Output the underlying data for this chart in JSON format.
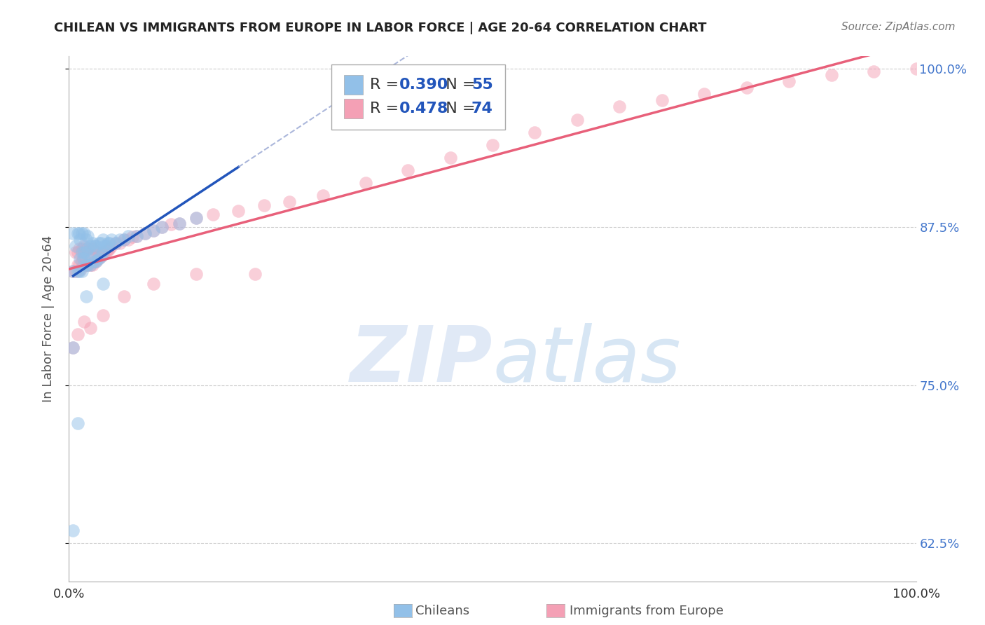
{
  "title": "CHILEAN VS IMMIGRANTS FROM EUROPE IN LABOR FORCE | AGE 20-64 CORRELATION CHART",
  "source": "Source: ZipAtlas.com",
  "ylabel": "In Labor Force | Age 20-64",
  "xlim": [
    0.0,
    1.0
  ],
  "ylim": [
    0.595,
    1.01
  ],
  "yticks": [
    0.625,
    0.75,
    0.875,
    1.0
  ],
  "ytick_labels": [
    "62.5%",
    "75.0%",
    "87.5%",
    "100.0%"
  ],
  "blue_color": "#92C0E8",
  "pink_color": "#F4A0B5",
  "blue_line_color": "#2255BB",
  "pink_line_color": "#E8607A",
  "R_blue": 0.39,
  "N_blue": 55,
  "R_pink": 0.478,
  "N_pink": 74,
  "blue_scatter_x": [
    0.005,
    0.005,
    0.008,
    0.01,
    0.01,
    0.012,
    0.012,
    0.013,
    0.013,
    0.015,
    0.015,
    0.015,
    0.017,
    0.018,
    0.018,
    0.02,
    0.02,
    0.02,
    0.022,
    0.022,
    0.022,
    0.025,
    0.025,
    0.027,
    0.028,
    0.03,
    0.03,
    0.032,
    0.032,
    0.035,
    0.035,
    0.038,
    0.038,
    0.04,
    0.04,
    0.042,
    0.044,
    0.046,
    0.048,
    0.05,
    0.055,
    0.06,
    0.065,
    0.07,
    0.08,
    0.09,
    0.1,
    0.11,
    0.13,
    0.15,
    0.005,
    0.02,
    0.04,
    0.005,
    0.01
  ],
  "blue_scatter_y": [
    0.84,
    0.87,
    0.86,
    0.84,
    0.87,
    0.84,
    0.87,
    0.85,
    0.865,
    0.84,
    0.855,
    0.87,
    0.85,
    0.855,
    0.87,
    0.845,
    0.855,
    0.865,
    0.845,
    0.858,
    0.868,
    0.845,
    0.86,
    0.85,
    0.862,
    0.848,
    0.86,
    0.848,
    0.86,
    0.85,
    0.862,
    0.852,
    0.862,
    0.855,
    0.865,
    0.86,
    0.86,
    0.862,
    0.862,
    0.865,
    0.862,
    0.865,
    0.865,
    0.868,
    0.868,
    0.87,
    0.872,
    0.875,
    0.878,
    0.882,
    0.78,
    0.82,
    0.83,
    0.635,
    0.72
  ],
  "pink_scatter_x": [
    0.005,
    0.008,
    0.008,
    0.01,
    0.01,
    0.012,
    0.012,
    0.014,
    0.015,
    0.015,
    0.017,
    0.018,
    0.018,
    0.02,
    0.02,
    0.022,
    0.022,
    0.025,
    0.025,
    0.028,
    0.028,
    0.03,
    0.03,
    0.032,
    0.034,
    0.035,
    0.036,
    0.038,
    0.04,
    0.042,
    0.044,
    0.046,
    0.048,
    0.05,
    0.055,
    0.06,
    0.065,
    0.07,
    0.075,
    0.08,
    0.09,
    0.1,
    0.11,
    0.12,
    0.13,
    0.15,
    0.17,
    0.2,
    0.23,
    0.26,
    0.3,
    0.35,
    0.4,
    0.45,
    0.5,
    0.55,
    0.6,
    0.65,
    0.7,
    0.75,
    0.8,
    0.85,
    0.9,
    0.95,
    1.0,
    0.005,
    0.01,
    0.018,
    0.025,
    0.04,
    0.065,
    0.1,
    0.15,
    0.22
  ],
  "pink_scatter_y": [
    0.84,
    0.84,
    0.855,
    0.845,
    0.855,
    0.845,
    0.858,
    0.842,
    0.848,
    0.858,
    0.845,
    0.85,
    0.86,
    0.845,
    0.858,
    0.845,
    0.855,
    0.845,
    0.858,
    0.845,
    0.858,
    0.848,
    0.858,
    0.848,
    0.85,
    0.852,
    0.855,
    0.852,
    0.855,
    0.855,
    0.856,
    0.857,
    0.858,
    0.86,
    0.862,
    0.862,
    0.865,
    0.865,
    0.867,
    0.868,
    0.87,
    0.872,
    0.875,
    0.877,
    0.878,
    0.882,
    0.885,
    0.888,
    0.892,
    0.895,
    0.9,
    0.91,
    0.92,
    0.93,
    0.94,
    0.95,
    0.96,
    0.97,
    0.975,
    0.98,
    0.985,
    0.99,
    0.995,
    0.998,
    1.0,
    0.78,
    0.79,
    0.8,
    0.795,
    0.805,
    0.82,
    0.83,
    0.838,
    0.838
  ]
}
